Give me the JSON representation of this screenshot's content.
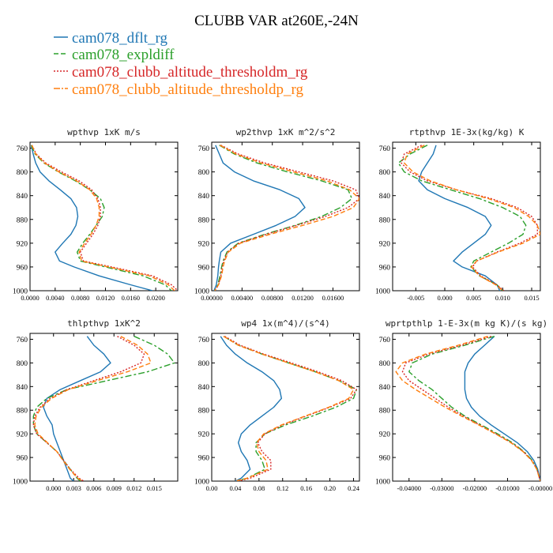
{
  "title": "CLUBB VAR at260E,-24N",
  "legend": [
    {
      "label": "cam078_dflt_rg",
      "color": "#1f77b4"
    },
    {
      "label": "cam078_expldiff",
      "color": "#2ca02c"
    },
    {
      "label": "cam078_clubb_altitude_thresholdm_rg",
      "color": "#d62728"
    },
    {
      "label": "cam078_clubb_altitude_thresholdp_rg",
      "color": "#ff7f0e"
    }
  ],
  "chart_data": [
    {
      "type": "line",
      "title": "wpthvp  1xK m/s",
      "xlim": [
        0,
        0.0235
      ],
      "ylim": [
        1000,
        750
      ],
      "xticks": [
        0,
        0.004,
        0.008,
        0.012,
        0.016,
        0.02
      ],
      "xtick_labels": [
        "0.0000",
        "0.0040",
        "0.0080",
        "0.0120",
        "0.0160",
        "0.0200"
      ],
      "yticks": [
        760,
        800,
        840,
        880,
        920,
        960,
        1000
      ],
      "y": [
        755,
        770,
        785,
        800,
        815,
        830,
        845,
        860,
        875,
        890,
        905,
        920,
        935,
        950,
        960,
        975,
        990,
        1000
      ],
      "series": [
        {
          "name": "cam078_dflt_rg",
          "color": "#1f77b4",
          "values": [
            0.0002,
            0.0005,
            0.0009,
            0.0016,
            0.003,
            0.0048,
            0.0065,
            0.0074,
            0.0076,
            0.0073,
            0.0065,
            0.0052,
            0.004,
            0.0047,
            0.007,
            0.011,
            0.016,
            0.0195
          ]
        },
        {
          "name": "cam078_expldiff",
          "color": "#2ca02c",
          "values": [
            0.0002,
            0.0008,
            0.0022,
            0.0045,
            0.0072,
            0.0095,
            0.0112,
            0.0118,
            0.0115,
            0.0105,
            0.0095,
            0.0084,
            0.0075,
            0.008,
            0.012,
            0.018,
            0.0215,
            0.0225
          ]
        },
        {
          "name": "cam078_clubb_altitude_thresholdm_rg",
          "color": "#d62728",
          "values": [
            0.0003,
            0.001,
            0.0025,
            0.005,
            0.0078,
            0.0098,
            0.0108,
            0.0112,
            0.0112,
            0.0108,
            0.01,
            0.009,
            0.008,
            0.0085,
            0.013,
            0.0195,
            0.0225,
            0.0235
          ]
        },
        {
          "name": "cam078_clubb_altitude_thresholdp_rg",
          "color": "#ff7f0e",
          "values": [
            0.0003,
            0.0009,
            0.0023,
            0.0046,
            0.0074,
            0.0095,
            0.0106,
            0.011,
            0.011,
            0.0105,
            0.0097,
            0.0087,
            0.0078,
            0.0082,
            0.0125,
            0.019,
            0.022,
            0.023
          ]
        }
      ]
    },
    {
      "type": "line",
      "title": "wp2thvp  1xK m^2/s^2",
      "xlim": [
        0,
        0.0195
      ],
      "ylim": [
        1000,
        750
      ],
      "xticks": [
        0,
        0.004,
        0.008,
        0.012,
        0.016
      ],
      "xtick_labels": [
        "0.00000",
        "0.00400",
        "0.00800",
        "0.01200",
        "0.01600"
      ],
      "yticks": [
        760,
        800,
        840,
        880,
        920,
        960,
        1000
      ],
      "y": [
        755,
        770,
        785,
        800,
        815,
        830,
        845,
        860,
        875,
        890,
        905,
        920,
        935,
        950,
        960,
        975,
        990,
        1000
      ],
      "series": [
        {
          "name": "cam078_dflt_rg",
          "color": "#1f77b4",
          "values": [
            0.0005,
            0.001,
            0.0015,
            0.003,
            0.0055,
            0.009,
            0.0115,
            0.0123,
            0.011,
            0.0085,
            0.0055,
            0.0025,
            0.0012,
            0.001,
            0.0009,
            0.0008,
            0.0006,
            0.0003
          ]
        },
        {
          "name": "cam078_expldiff",
          "color": "#2ca02c",
          "values": [
            0.001,
            0.003,
            0.006,
            0.01,
            0.0145,
            0.018,
            0.0185,
            0.017,
            0.0145,
            0.011,
            0.007,
            0.0035,
            0.002,
            0.0015,
            0.0013,
            0.0011,
            0.0008,
            0.0004
          ]
        },
        {
          "name": "cam078_clubb_altitude_thresholdm_rg",
          "color": "#d62728",
          "values": [
            0.0012,
            0.0035,
            0.007,
            0.0115,
            0.016,
            0.019,
            0.0195,
            0.018,
            0.015,
            0.0112,
            0.0072,
            0.0036,
            0.0021,
            0.0016,
            0.0014,
            0.0012,
            0.0009,
            0.0004
          ]
        },
        {
          "name": "cam078_clubb_altitude_thresholdp_rg",
          "color": "#ff7f0e",
          "values": [
            0.0011,
            0.0032,
            0.0065,
            0.0108,
            0.0152,
            0.0182,
            0.0195,
            0.0187,
            0.016,
            0.012,
            0.0077,
            0.0038,
            0.0022,
            0.0017,
            0.0015,
            0.0013,
            0.0009,
            0.0004
          ]
        }
      ]
    },
    {
      "type": "line",
      "title": "rtpthvp  1E-3x(kg/kg) K",
      "xlim": [
        -0.009,
        0.0165
      ],
      "ylim": [
        1000,
        750
      ],
      "xticks": [
        -0.005,
        0,
        0.005,
        0.01,
        0.015
      ],
      "xtick_labels": [
        "-0.005",
        "0.000",
        "0.005",
        "0.010",
        "0.015"
      ],
      "yticks": [
        760,
        800,
        840,
        880,
        920,
        960,
        1000
      ],
      "y": [
        755,
        770,
        785,
        800,
        815,
        830,
        845,
        860,
        875,
        890,
        905,
        920,
        935,
        950,
        960,
        975,
        990,
        1000
      ],
      "series": [
        {
          "name": "cam078_dflt_rg",
          "color": "#1f77b4",
          "values": [
            -0.0015,
            -0.002,
            -0.003,
            -0.004,
            -0.0045,
            -0.003,
            0.0,
            0.004,
            0.007,
            0.008,
            0.007,
            0.005,
            0.003,
            0.0015,
            0.003,
            0.007,
            0.009,
            0.0095
          ]
        },
        {
          "name": "cam078_expldiff",
          "color": "#2ca02c",
          "values": [
            -0.003,
            -0.006,
            -0.008,
            -0.007,
            -0.004,
            0.001,
            0.006,
            0.01,
            0.013,
            0.014,
            0.0135,
            0.011,
            0.008,
            0.005,
            0.0045,
            0.006,
            0.009,
            0.01
          ]
        },
        {
          "name": "cam078_clubb_altitude_thresholdm_rg",
          "color": "#d62728",
          "values": [
            -0.004,
            -0.007,
            -0.0075,
            -0.006,
            -0.003,
            0.002,
            0.008,
            0.0125,
            0.015,
            0.016,
            0.016,
            0.013,
            0.009,
            0.0055,
            0.0048,
            0.0062,
            0.009,
            0.0102
          ]
        },
        {
          "name": "cam078_clubb_altitude_thresholdp_rg",
          "color": "#ff7f0e",
          "values": [
            -0.0035,
            -0.0065,
            -0.007,
            -0.0055,
            -0.0025,
            0.002,
            0.0075,
            0.012,
            0.0145,
            0.016,
            0.0165,
            0.0135,
            0.0092,
            0.0055,
            0.0046,
            0.006,
            0.0088,
            0.01
          ]
        }
      ]
    },
    {
      "type": "line",
      "title": "thlpthvp  1xK^2",
      "xlim": [
        -0.0035,
        0.0185
      ],
      "ylim": [
        1000,
        750
      ],
      "xticks": [
        0,
        0.003,
        0.006,
        0.009,
        0.012,
        0.015
      ],
      "xtick_labels": [
        "0.000",
        "0.003",
        "0.006",
        "0.009",
        "0.012",
        "0.015"
      ],
      "yticks": [
        760,
        800,
        840,
        880,
        920,
        960,
        1000
      ],
      "y": [
        755,
        770,
        785,
        800,
        815,
        830,
        845,
        860,
        875,
        890,
        905,
        920,
        935,
        950,
        965,
        980,
        995,
        1000
      ],
      "series": [
        {
          "name": "cam078_dflt_rg",
          "color": "#1f77b4",
          "values": [
            0.005,
            0.006,
            0.0075,
            0.0085,
            0.007,
            0.004,
            0.001,
            -0.001,
            -0.0015,
            -0.001,
            -0.0002,
            0.0,
            0.0005,
            0.001,
            0.0015,
            0.002,
            0.0025,
            0.003
          ]
        },
        {
          "name": "cam078_expldiff",
          "color": "#2ca02c",
          "values": [
            0.012,
            0.015,
            0.017,
            0.018,
            0.014,
            0.008,
            0.002,
            -0.001,
            -0.0025,
            -0.003,
            -0.003,
            -0.0025,
            -0.001,
            0.0005,
            0.0015,
            0.0025,
            0.0035,
            0.004
          ]
        },
        {
          "name": "cam078_clubb_altitude_thresholdm_rg",
          "color": "#d62728",
          "values": [
            0.0095,
            0.012,
            0.0135,
            0.013,
            0.01,
            0.006,
            0.002,
            -0.0005,
            -0.002,
            -0.0028,
            -0.003,
            -0.0025,
            -0.001,
            0.0005,
            0.0015,
            0.0025,
            0.0038,
            0.0045
          ]
        },
        {
          "name": "cam078_clubb_altitude_thresholdp_rg",
          "color": "#ff7f0e",
          "values": [
            0.01,
            0.0125,
            0.014,
            0.0145,
            0.011,
            0.0065,
            0.0022,
            -0.0003,
            -0.0018,
            -0.0026,
            -0.0028,
            -0.0023,
            -0.0009,
            0.0005,
            0.0014,
            0.0024,
            0.0036,
            0.0043
          ]
        }
      ]
    },
    {
      "type": "line",
      "title": "wp4  1x(m^4)/(s^4)",
      "xlim": [
        0,
        0.25
      ],
      "ylim": [
        1000,
        750
      ],
      "xticks": [
        0,
        0.04,
        0.08,
        0.12,
        0.16,
        0.2,
        0.24
      ],
      "xtick_labels": [
        "0.00",
        "0.04",
        "0.08",
        "0.12",
        "0.16",
        "0.20",
        "0.24"
      ],
      "yticks": [
        760,
        800,
        840,
        880,
        920,
        960,
        1000
      ],
      "y": [
        755,
        770,
        785,
        800,
        815,
        830,
        845,
        860,
        875,
        890,
        905,
        920,
        935,
        950,
        965,
        980,
        995,
        1000
      ],
      "series": [
        {
          "name": "cam078_dflt_rg",
          "color": "#1f77b4",
          "values": [
            0.015,
            0.025,
            0.04,
            0.06,
            0.085,
            0.105,
            0.115,
            0.118,
            0.105,
            0.085,
            0.065,
            0.05,
            0.045,
            0.05,
            0.06,
            0.065,
            0.05,
            0.04
          ]
        },
        {
          "name": "cam078_expldiff",
          "color": "#2ca02c",
          "values": [
            0.02,
            0.045,
            0.085,
            0.13,
            0.175,
            0.215,
            0.245,
            0.24,
            0.21,
            0.17,
            0.125,
            0.09,
            0.075,
            0.075,
            0.085,
            0.09,
            0.06,
            0.04
          ]
        },
        {
          "name": "cam078_clubb_altitude_thresholdm_rg",
          "color": "#d62728",
          "values": [
            0.022,
            0.048,
            0.088,
            0.135,
            0.18,
            0.22,
            0.245,
            0.235,
            0.2,
            0.16,
            0.12,
            0.09,
            0.078,
            0.085,
            0.1,
            0.1,
            0.065,
            0.045
          ]
        },
        {
          "name": "cam078_clubb_altitude_thresholdp_rg",
          "color": "#ff7f0e",
          "values": [
            0.02,
            0.045,
            0.085,
            0.13,
            0.175,
            0.215,
            0.24,
            0.232,
            0.198,
            0.158,
            0.118,
            0.088,
            0.076,
            0.08,
            0.092,
            0.095,
            0.06,
            0.04
          ]
        }
      ]
    },
    {
      "type": "line",
      "title": "wprtpthlp  1-E-3x(m kg K)/(s kg)",
      "xlim": [
        -0.045,
        0
      ],
      "ylim": [
        1000,
        750
      ],
      "xticks": [
        -0.04,
        -0.03,
        -0.02,
        -0.01,
        0
      ],
      "xtick_labels": [
        "-0.04000",
        "-0.03000",
        "-0.02000",
        "-0.01000",
        "-0.00000"
      ],
      "yticks": [
        760,
        800,
        840,
        880,
        920,
        960,
        1000
      ],
      "y": [
        755,
        770,
        785,
        800,
        815,
        830,
        845,
        860,
        875,
        890,
        905,
        920,
        935,
        950,
        965,
        980,
        995,
        1000
      ],
      "series": [
        {
          "name": "cam078_dflt_rg",
          "color": "#1f77b4",
          "values": [
            -0.014,
            -0.017,
            -0.02,
            -0.022,
            -0.023,
            -0.023,
            -0.023,
            -0.0225,
            -0.021,
            -0.0185,
            -0.015,
            -0.011,
            -0.007,
            -0.004,
            -0.002,
            -0.0008,
            -0.0002,
            0.0
          ]
        },
        {
          "name": "cam078_expldiff",
          "color": "#2ca02c",
          "values": [
            -0.014,
            -0.023,
            -0.033,
            -0.039,
            -0.04,
            -0.037,
            -0.033,
            -0.03,
            -0.027,
            -0.023,
            -0.018,
            -0.013,
            -0.0085,
            -0.005,
            -0.0025,
            -0.001,
            -0.0003,
            0.0
          ]
        },
        {
          "name": "cam078_clubb_altitude_thresholdm_rg",
          "color": "#d62728",
          "values": [
            -0.015,
            -0.024,
            -0.034,
            -0.041,
            -0.042,
            -0.04,
            -0.036,
            -0.032,
            -0.028,
            -0.0235,
            -0.0185,
            -0.0135,
            -0.0088,
            -0.0052,
            -0.0026,
            -0.001,
            -0.0003,
            0.0
          ]
        },
        {
          "name": "cam078_clubb_altitude_thresholdp_rg",
          "color": "#ff7f0e",
          "values": [
            -0.016,
            -0.025,
            -0.035,
            -0.042,
            -0.044,
            -0.042,
            -0.038,
            -0.0335,
            -0.029,
            -0.024,
            -0.0188,
            -0.0137,
            -0.009,
            -0.0053,
            -0.0027,
            -0.0011,
            -0.0003,
            0.0
          ]
        }
      ]
    }
  ]
}
